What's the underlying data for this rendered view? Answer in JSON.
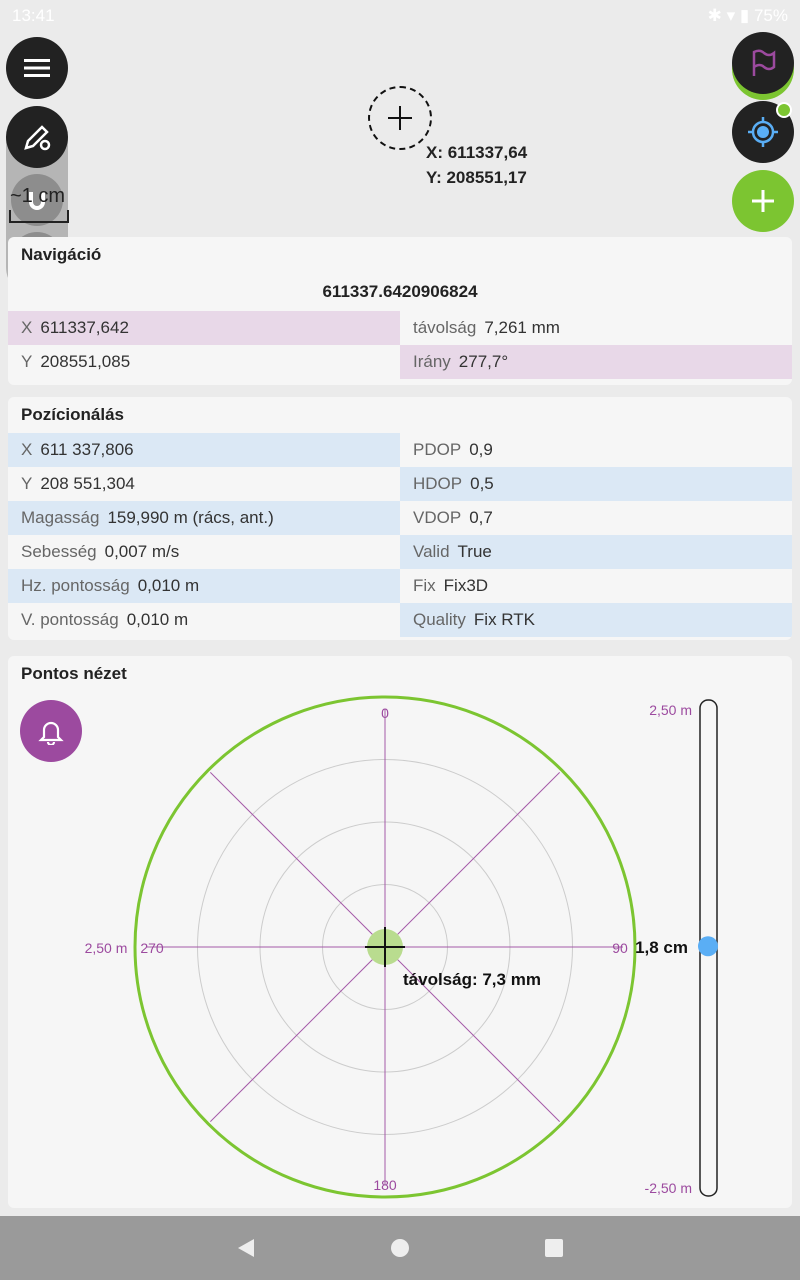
{
  "status": {
    "time": "13:41",
    "battery": "75%"
  },
  "crosshair": {
    "x": "X: 611337,64",
    "y": "Y: 208551,17"
  },
  "scale_label": "~1 cm",
  "navigation": {
    "title": "Navigáció",
    "value": "611337.6420906824",
    "rows": [
      [
        {
          "k": "X",
          "v": "611337,642"
        },
        {
          "k": "távolság",
          "v": "7,261 mm"
        }
      ],
      [
        {
          "k": "Y",
          "v": "208551,085"
        },
        {
          "k": "Irány",
          "v": "277,7°"
        }
      ]
    ]
  },
  "positioning": {
    "title": "Pozícionálás",
    "rows": [
      [
        {
          "k": "X",
          "v": "611 337,806"
        },
        {
          "k": "PDOP",
          "v": "0,9"
        }
      ],
      [
        {
          "k": "Y",
          "v": "208 551,304"
        },
        {
          "k": "HDOP",
          "v": "0,5"
        }
      ],
      [
        {
          "k": "Magasság",
          "v": "159,990 m  (rács, ant.)"
        },
        {
          "k": "VDOP",
          "v": "0,7"
        }
      ],
      [
        {
          "k": "Sebesség",
          "v": "0,007 m/s"
        },
        {
          "k": "Valid",
          "v": "True"
        }
      ],
      [
        {
          "k": "Hz. pontosság",
          "v": "0,010 m"
        },
        {
          "k": "Fix",
          "v": "Fix3D"
        }
      ],
      [
        {
          "k": "V. pontosság",
          "v": "0,010 m"
        },
        {
          "k": "Quality",
          "v": "Fix RTK"
        }
      ]
    ]
  },
  "precise": {
    "title": "Pontos nézet",
    "n": "0",
    "e": "90",
    "s": "180",
    "w": "270",
    "radius_label": "2,50 m",
    "distance": "távolság: 7,3 mm",
    "slider": {
      "top": "2,50 m",
      "bottom": "-2,50 m",
      "value_label": "1,8 cm",
      "value_m": 0.018
    }
  },
  "colors": {
    "accent": "#9c4a9f",
    "green": "#7cc531",
    "blue": "#5aaef5"
  }
}
